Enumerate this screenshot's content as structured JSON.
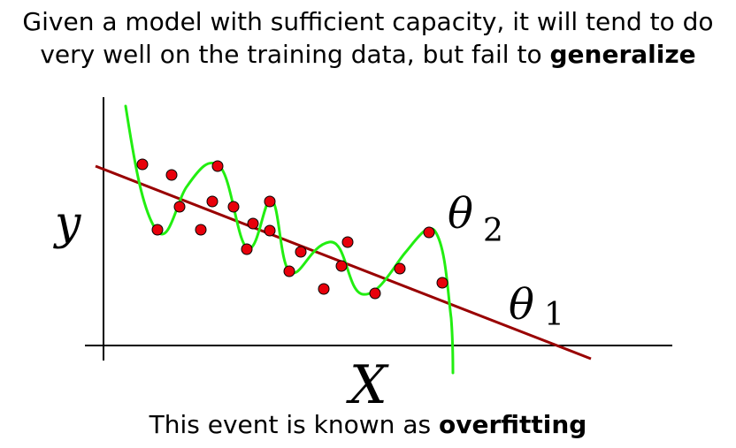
{
  "headline": {
    "line1": "Given a model with sufficient capacity, it will tend to do",
    "line2_pre": "very well on the training data, but fail to ",
    "line2_bold": "generalize"
  },
  "footer": {
    "pre": "This event is known as ",
    "bold": "overfitting"
  },
  "diagram": {
    "y_axis_label": "y",
    "x_axis_label": "X",
    "theta2_symbol": "θ",
    "theta2_subscript": "2",
    "theta1_symbol": "θ",
    "theta1_subscript": "1",
    "colors": {
      "points": "#e8000b",
      "overfit_curve": "#22ee11",
      "linear_fit": "#990000",
      "axes": "#000000"
    }
  }
}
